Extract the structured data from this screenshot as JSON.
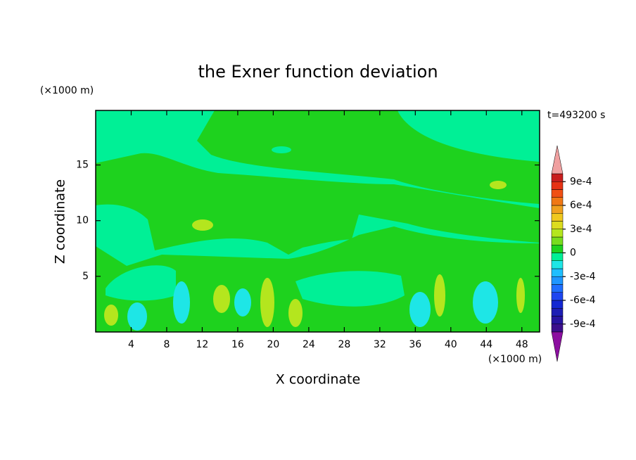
{
  "chart_data": {
    "type": "contour",
    "title": "the Exner function deviation",
    "x_label": "X coordinate",
    "y_label": "Z coordinate",
    "x_unit": "(×1000 m)",
    "y_unit": "(×1000 m)",
    "time_label": "t=493200 s",
    "xlim": [
      0,
      50
    ],
    "xticks": [
      4,
      8,
      12,
      16,
      20,
      24,
      28,
      32,
      36,
      40,
      44,
      48
    ],
    "ylim": [
      0,
      19.9
    ],
    "yticks": [
      5,
      10,
      15
    ],
    "colorbar": {
      "levels": [
        -0.001,
        -0.0009,
        -0.0008,
        -0.0007,
        -0.0006,
        -0.0005,
        -0.0004,
        -0.0003,
        -0.0002,
        -0.0001,
        0,
        0.0001,
        0.0002,
        0.0003,
        0.0004,
        0.0005,
        0.0006,
        0.0007,
        0.0008,
        0.0009,
        0.001
      ],
      "colors": [
        "#3c0f8c",
        "#2814a0",
        "#1e1eb4",
        "#1428d2",
        "#1e46f0",
        "#1e6eff",
        "#1e96ff",
        "#1ebeff",
        "#1ee6e6",
        "#00f096",
        "#1ed21e",
        "#78dc1e",
        "#b4e61e",
        "#dcdc1e",
        "#f0c81e",
        "#f0a01e",
        "#f07814",
        "#f05014",
        "#e63214",
        "#c81e1e"
      ],
      "under_color": "#8c0fa0",
      "over_color": "#f0a0a0",
      "ticks": [
        {
          "value": 0.0009,
          "label": "9e-4"
        },
        {
          "value": 0.0006,
          "label": "6e-4"
        },
        {
          "value": 0.0003,
          "label": "3e-4"
        },
        0,
        {
          "value": -0.0003,
          "label": "-3e-4"
        },
        {
          "value": -0.0006,
          "label": "-6e-4"
        },
        {
          "value": -0.0009,
          "label": "-9e-4"
        }
      ]
    }
  }
}
